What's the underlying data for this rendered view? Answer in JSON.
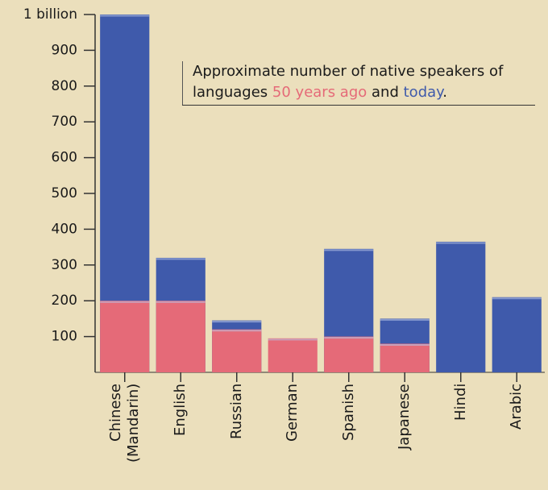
{
  "chart_data": {
    "type": "bar",
    "overlap": true,
    "annotation_parts": [
      "Approximate number of native speakers of languages",
      "and",
      "."
    ],
    "categories": [
      "Chinese (Mandarin)",
      "English",
      "Russian",
      "German",
      "Spanish",
      "Japanese",
      "Hindi",
      "Arabic"
    ],
    "series": [
      {
        "name": "today",
        "color": "#3f5aab",
        "values": [
          1000,
          320,
          145,
          null,
          345,
          150,
          365,
          210
        ]
      },
      {
        "name": "50 years ago",
        "color": "#e56a78",
        "values": [
          200,
          200,
          120,
          95,
          100,
          80,
          null,
          null
        ]
      }
    ],
    "ylim": [
      0,
      1000
    ],
    "yticks": [
      100,
      200,
      300,
      400,
      500,
      600,
      700,
      800,
      900,
      {
        "value": 1000,
        "label": "1 billion"
      }
    ]
  }
}
